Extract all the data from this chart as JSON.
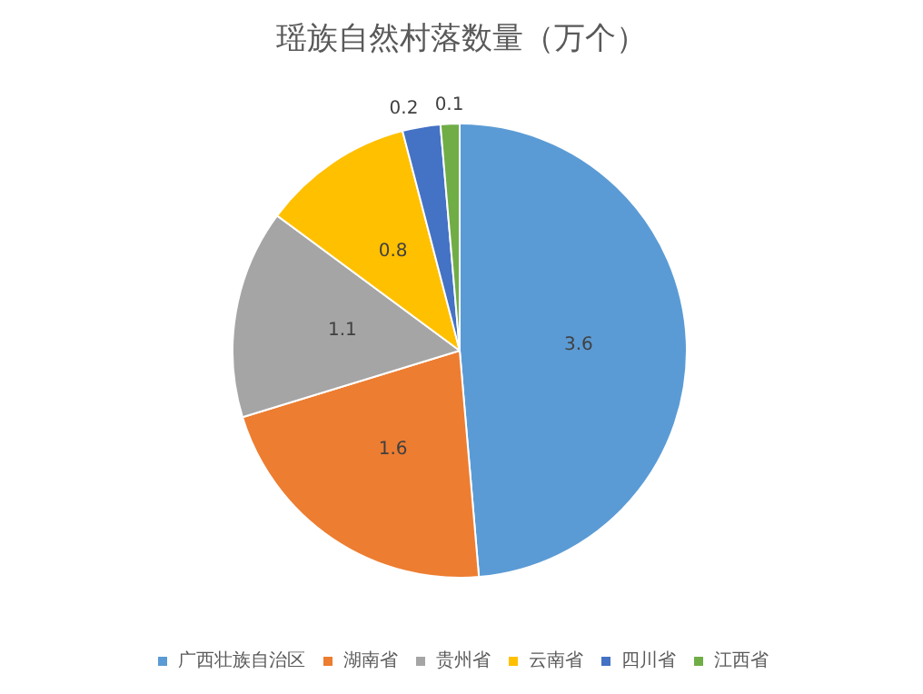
{
  "chart_data": {
    "type": "pie",
    "title": "瑶族自然村落数量（万个）",
    "categories": [
      "广西壮族自治区",
      "湖南省",
      "贵州省",
      "云南省",
      "四川省",
      "江西省"
    ],
    "values": [
      3.6,
      1.6,
      1.1,
      0.8,
      0.2,
      0.1
    ],
    "colors": [
      "#5b9bd5",
      "#ed7d31",
      "#a5a5a5",
      "#ffc000",
      "#4472c4",
      "#70ad47"
    ],
    "data_labels": true,
    "legend": "bottom"
  }
}
